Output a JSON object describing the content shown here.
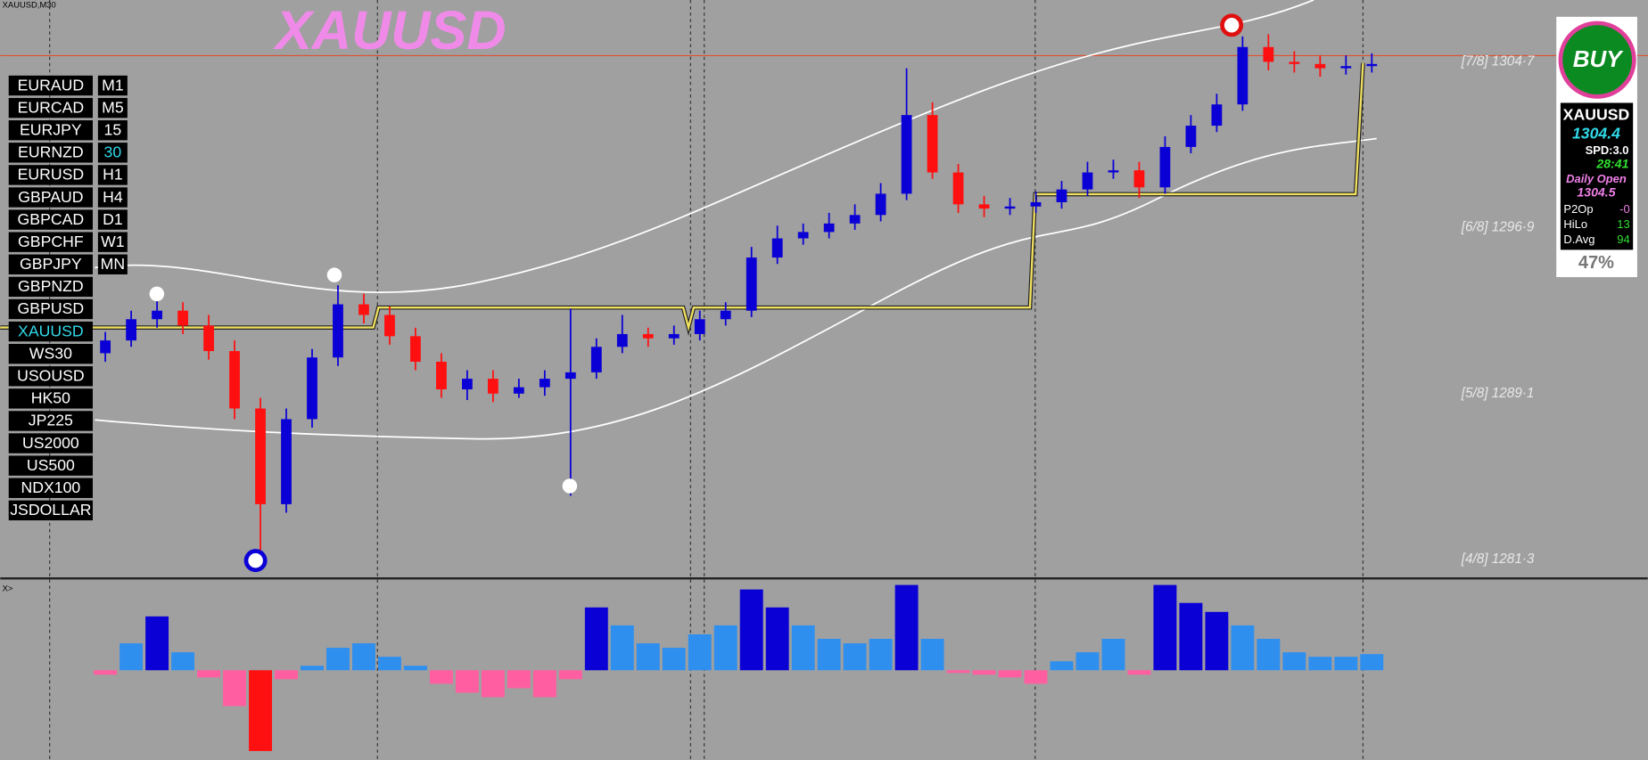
{
  "window_title": "XAUUSD,M30",
  "symbol_title": "XAUUSD",
  "symbols": [
    "EURAUD",
    "EURCAD",
    "EURJPY",
    "EURNZD",
    "EURUSD",
    "GBPAUD",
    "GBPCAD",
    "GBPCHF",
    "GBPJPY",
    "GBPNZD",
    "GBPUSD",
    "XAUUSD",
    "WS30",
    "USOUSD",
    "HK50",
    "JP225",
    "US2000",
    "US500",
    "NDX100",
    "JSDOLLAR"
  ],
  "timeframes": [
    "M1",
    "M5",
    "15",
    "30",
    "H1",
    "H4",
    "D1",
    "W1",
    "MN"
  ],
  "active_timeframe": "30",
  "chart_data": {
    "type": "candlestick",
    "open": [
      1291.0,
      1291.6,
      1292.6,
      1293.0,
      1292.3,
      1291.1,
      1288.4,
      1283.9,
      1287.9,
      1290.8,
      1293.3,
      1292.8,
      1291.8,
      1290.6,
      1289.3,
      1289.8,
      1289.1,
      1289.4,
      1289.8,
      1290.1,
      1291.3,
      1291.9,
      1291.7,
      1291.9,
      1292.6,
      1293.0,
      1295.5,
      1296.4,
      1296.7,
      1297.1,
      1297.5,
      1298.5,
      1302.2,
      1299.5,
      1298.0,
      1297.8,
      1297.9,
      1298.1,
      1298.7,
      1299.5,
      1299.6,
      1298.8,
      1300.7,
      1301.7,
      1302.7,
      1305.4,
      1304.7,
      1304.6,
      1304.4,
      1304.5
    ],
    "high": [
      1292.0,
      1293.0,
      1293.6,
      1293.4,
      1292.8,
      1291.6,
      1288.9,
      1288.4,
      1291.2,
      1294.2,
      1293.8,
      1293.2,
      1292.2,
      1291.0,
      1290.2,
      1290.2,
      1289.8,
      1290.2,
      1293.1,
      1291.7,
      1292.8,
      1292.2,
      1292.3,
      1293.0,
      1293.4,
      1296.0,
      1297.0,
      1297.1,
      1297.6,
      1298.0,
      1299.0,
      1304.4,
      1302.8,
      1299.9,
      1298.4,
      1298.3,
      1298.6,
      1299.1,
      1300.0,
      1300.1,
      1300.0,
      1301.2,
      1302.2,
      1303.2,
      1305.9,
      1306.0,
      1305.2,
      1305.0,
      1305.0,
      1305.1
    ],
    "low": [
      1290.6,
      1291.3,
      1292.2,
      1291.9,
      1290.7,
      1287.9,
      1281.2,
      1283.5,
      1287.5,
      1290.4,
      1292.4,
      1291.4,
      1290.2,
      1288.9,
      1288.8,
      1288.7,
      1288.9,
      1289.0,
      1284.3,
      1289.8,
      1291.0,
      1291.3,
      1291.4,
      1291.6,
      1292.3,
      1292.7,
      1295.2,
      1296.1,
      1296.4,
      1296.8,
      1297.2,
      1298.2,
      1299.2,
      1297.6,
      1297.4,
      1297.5,
      1297.6,
      1297.8,
      1298.4,
      1299.2,
      1298.3,
      1298.5,
      1300.4,
      1301.4,
      1302.4,
      1304.3,
      1304.2,
      1304.0,
      1304.1,
      1304.2
    ],
    "close": [
      1291.6,
      1292.6,
      1293.0,
      1292.3,
      1291.1,
      1288.4,
      1283.9,
      1287.9,
      1290.8,
      1293.3,
      1292.8,
      1291.8,
      1290.6,
      1289.3,
      1289.8,
      1289.1,
      1289.4,
      1289.8,
      1290.1,
      1291.3,
      1291.9,
      1291.7,
      1291.9,
      1292.6,
      1293.0,
      1295.5,
      1296.4,
      1296.7,
      1297.1,
      1297.5,
      1298.5,
      1302.2,
      1299.5,
      1298.0,
      1297.8,
      1297.9,
      1298.1,
      1298.7,
      1299.5,
      1299.6,
      1298.8,
      1300.7,
      1301.7,
      1302.7,
      1305.4,
      1304.7,
      1304.6,
      1304.4,
      1304.5,
      1304.6
    ],
    "ylim": [
      1280.46,
      1307.61
    ],
    "levels": [
      {
        "value": 1304.7,
        "label": "[7/8] 1304·7"
      },
      {
        "value": 1296.9,
        "label": "[6/8] 1296·9"
      },
      {
        "value": 1289.1,
        "label": "[5/8] 1289·1"
      },
      {
        "value": 1281.3,
        "label": "[4/8] 1281·3"
      }
    ],
    "up_color": "#0a00d6",
    "down_color": "#ff1010"
  },
  "indicator": {
    "label": "X>",
    "values": [
      -0.5,
      3,
      6,
      2,
      -0.8,
      -4,
      -9,
      -1,
      0.5,
      2.5,
      3,
      1.5,
      0.5,
      -1.5,
      -2.5,
      -3,
      -2,
      -3,
      -1,
      7,
      5,
      3,
      2.5,
      4,
      5,
      9,
      7,
      5,
      3.5,
      3,
      3.5,
      9.5,
      3.5,
      -0.3,
      -0.5,
      -0.8,
      -1.5,
      1,
      2,
      3.5,
      -0.5,
      9.5,
      7.5,
      6.5,
      5,
      3.5,
      2,
      1.5,
      1.5,
      1.8
    ],
    "ylim": [
      -10,
      10
    ],
    "colors": {
      "strong_up": "#0a00d6",
      "up": "#2f8fef",
      "down": "#ff5fa0",
      "strong_down": "#ff1010"
    }
  },
  "panel": {
    "signal": "BUY",
    "symbol": "XAUUSD",
    "price": "1304.4",
    "spread": "SPD:3.0",
    "timer": "28:41",
    "daily_open_label": "Daily Open",
    "daily_open": "1304.5",
    "rows": [
      [
        "P2Op",
        "-0"
      ],
      [
        "HiLo",
        "13"
      ],
      [
        "D.Avg",
        "94"
      ]
    ],
    "percent": "47%"
  }
}
